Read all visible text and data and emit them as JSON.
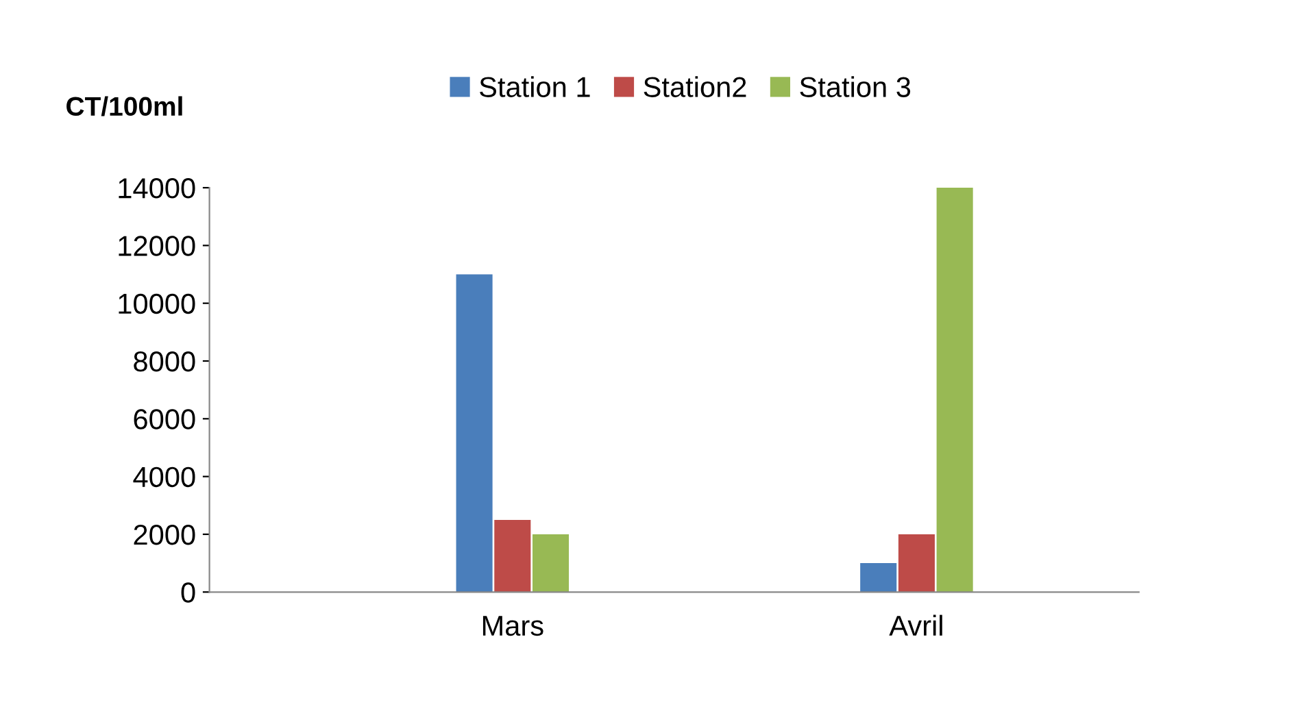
{
  "chart_data": {
    "type": "bar",
    "ylabel": "CT/100ml",
    "categories": [
      "Mars",
      "Avril"
    ],
    "series": [
      {
        "name": "Station 1",
        "color": "#4a7ebb",
        "values": [
          11000,
          1000
        ]
      },
      {
        "name": "Station2",
        "color": "#be4b48",
        "values": [
          2500,
          2000
        ]
      },
      {
        "name": "Station 3",
        "color": "#98b954",
        "values": [
          2000,
          14000
        ]
      }
    ],
    "ylim": [
      0,
      14000
    ],
    "yticks": [
      0,
      2000,
      4000,
      6000,
      8000,
      10000,
      12000,
      14000
    ],
    "grid": false,
    "legend": "top"
  }
}
